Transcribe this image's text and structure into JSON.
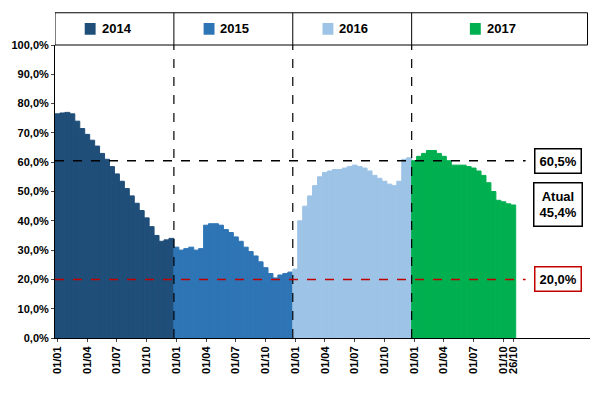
{
  "chart_data": {
    "type": "area",
    "categories": [
      "01/01",
      null,
      null,
      null,
      null,
      null,
      "01/04",
      null,
      null,
      null,
      null,
      null,
      "01/07",
      null,
      null,
      null,
      null,
      null,
      "01/10",
      null,
      null,
      null,
      null,
      null,
      "01/01",
      null,
      null,
      null,
      null,
      null,
      "01/04",
      null,
      null,
      null,
      null,
      null,
      "01/07",
      null,
      null,
      null,
      null,
      null,
      "01/10",
      null,
      null,
      null,
      null,
      null,
      "01/01",
      null,
      null,
      null,
      null,
      null,
      "01/04",
      null,
      null,
      null,
      null,
      null,
      "01/07",
      null,
      null,
      null,
      null,
      null,
      "01/10",
      null,
      null,
      null,
      null,
      null,
      "01/01",
      null,
      null,
      null,
      null,
      null,
      "01/04",
      null,
      null,
      null,
      null,
      null,
      "01/07",
      null,
      null,
      null,
      null,
      null,
      "01/10",
      null,
      "26/10"
    ],
    "series": [
      {
        "name": "2014",
        "color": "#1f4e79",
        "values": [
          76.5,
          76.8,
          77.0,
          76.5,
          74,
          71.5,
          69.5,
          67.5,
          65.5,
          63,
          61,
          58.5,
          56,
          53.5,
          51,
          48.5,
          46,
          43.5,
          41,
          38,
          35,
          33,
          33.5,
          34,
          null,
          null,
          null,
          null,
          null,
          null,
          null,
          null,
          null,
          null,
          null,
          null,
          null,
          null,
          null,
          null,
          null,
          null,
          null,
          null,
          null,
          null,
          null,
          null,
          null,
          null,
          null,
          null,
          null,
          null,
          null,
          null,
          null,
          null,
          null,
          null,
          null,
          null,
          null,
          null,
          null,
          null,
          null,
          null,
          null,
          null,
          null,
          null,
          null,
          null,
          null,
          null,
          null,
          null,
          null,
          null,
          null,
          null,
          null,
          null,
          null,
          null,
          null,
          null,
          null,
          null,
          null,
          null,
          null
        ]
      },
      {
        "name": "2015",
        "color": "#2e75b6",
        "values": [
          null,
          null,
          null,
          null,
          null,
          null,
          null,
          null,
          null,
          null,
          null,
          null,
          null,
          null,
          null,
          null,
          null,
          null,
          null,
          null,
          null,
          null,
          null,
          null,
          31,
          30,
          30.5,
          31,
          30,
          30.5,
          38.5,
          39,
          39,
          38.5,
          37,
          36,
          34.5,
          33,
          31,
          29.5,
          28,
          26,
          24,
          22,
          20.5,
          21.5,
          22,
          22.5,
          null,
          null,
          null,
          null,
          null,
          null,
          null,
          null,
          null,
          null,
          null,
          null,
          null,
          null,
          null,
          null,
          null,
          null,
          null,
          null,
          null,
          null,
          null,
          null,
          null,
          null,
          null,
          null,
          null,
          null,
          null,
          null,
          null,
          null,
          null,
          null,
          null,
          null,
          null,
          null,
          null,
          null,
          null,
          null,
          null
        ]
      },
      {
        "name": "2016",
        "color": "#9dc3e6",
        "values": [
          null,
          null,
          null,
          null,
          null,
          null,
          null,
          null,
          null,
          null,
          null,
          null,
          null,
          null,
          null,
          null,
          null,
          null,
          null,
          null,
          null,
          null,
          null,
          null,
          null,
          null,
          null,
          null,
          null,
          null,
          null,
          null,
          null,
          null,
          null,
          null,
          null,
          null,
          null,
          null,
          null,
          null,
          null,
          null,
          null,
          null,
          null,
          null,
          23.5,
          40,
          45,
          48.5,
          52,
          55,
          56.5,
          57,
          57.5,
          57.5,
          58,
          58.5,
          59,
          58.5,
          58,
          57,
          55.5,
          54.5,
          53.5,
          52.5,
          52,
          53.5,
          61,
          61.5,
          null,
          null,
          null,
          null,
          null,
          null,
          null,
          null,
          null,
          null,
          null,
          null,
          null,
          null,
          null,
          null,
          null,
          null,
          null,
          null,
          null
        ]
      },
      {
        "name": "2017",
        "color": "#00b050",
        "values": [
          null,
          null,
          null,
          null,
          null,
          null,
          null,
          null,
          null,
          null,
          null,
          null,
          null,
          null,
          null,
          null,
          null,
          null,
          null,
          null,
          null,
          null,
          null,
          null,
          null,
          null,
          null,
          null,
          null,
          null,
          null,
          null,
          null,
          null,
          null,
          null,
          null,
          null,
          null,
          null,
          null,
          null,
          null,
          null,
          null,
          null,
          null,
          null,
          null,
          null,
          null,
          null,
          null,
          null,
          null,
          null,
          null,
          null,
          null,
          null,
          null,
          null,
          null,
          null,
          null,
          null,
          null,
          null,
          null,
          null,
          null,
          null,
          60.5,
          62,
          63,
          64,
          64,
          63,
          62,
          60.5,
          59,
          59,
          59,
          58.5,
          58,
          57,
          55.5,
          53,
          50,
          47,
          46.5,
          45.8,
          45.4
        ]
      }
    ],
    "ylim": [
      0,
      100
    ],
    "yticks": [
      {
        "value": 0,
        "label": "0,0%"
      },
      {
        "value": 10,
        "label": "10,0%"
      },
      {
        "value": 20,
        "label": "20,0%"
      },
      {
        "value": 30,
        "label": "30,0%"
      },
      {
        "value": 40,
        "label": "40,0%"
      },
      {
        "value": 50,
        "label": "50,0%"
      },
      {
        "value": 60,
        "label": "60,0%"
      },
      {
        "value": 70,
        "label": "70,0%"
      },
      {
        "value": 80,
        "label": "80,0%"
      },
      {
        "value": 90,
        "label": "90,0%"
      },
      {
        "value": 100,
        "label": "100,0%"
      }
    ],
    "grid": false,
    "reference_lines": [
      {
        "value": 60.5,
        "label": "60,5%",
        "color": "#000000"
      },
      {
        "value": 20,
        "label": "20,0%",
        "color": "#c00000"
      }
    ],
    "current": {
      "label": "Atual",
      "value": 45.4,
      "value_label": "45,4%"
    }
  }
}
